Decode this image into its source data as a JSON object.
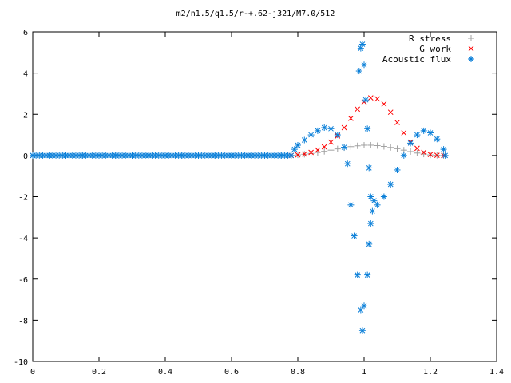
{
  "chart_data": {
    "type": "scatter",
    "title": "m2/n1.5/q1.5/r-+.62-j321/M7.0/512",
    "xlabel": "",
    "ylabel": "",
    "xlim": [
      0,
      1.4
    ],
    "ylim": [
      -10,
      6
    ],
    "x_ticks": [
      "0",
      "0.2",
      "0.4",
      "0.6",
      "0.8",
      "1",
      "1.2",
      "1.4"
    ],
    "y_ticks": [
      "-10",
      "-8",
      "-6",
      "-4",
      "-2",
      "0",
      "2",
      "4",
      "6"
    ],
    "grid": false,
    "legend_position": "top-right",
    "series": [
      {
        "name": "R stress",
        "marker": "plus",
        "color": "#a0a0a0",
        "points": [
          [
            0.78,
            0.0
          ],
          [
            0.8,
            0.03
          ],
          [
            0.82,
            0.06
          ],
          [
            0.84,
            0.1
          ],
          [
            0.86,
            0.15
          ],
          [
            0.88,
            0.2
          ],
          [
            0.9,
            0.26
          ],
          [
            0.92,
            0.32
          ],
          [
            0.94,
            0.38
          ],
          [
            0.96,
            0.43
          ],
          [
            0.98,
            0.47
          ],
          [
            1.0,
            0.5
          ],
          [
            1.02,
            0.5
          ],
          [
            1.04,
            0.48
          ],
          [
            1.06,
            0.44
          ],
          [
            1.08,
            0.39
          ],
          [
            1.1,
            0.33
          ],
          [
            1.12,
            0.26
          ],
          [
            1.14,
            0.19
          ],
          [
            1.16,
            0.12
          ],
          [
            1.18,
            0.07
          ],
          [
            1.2,
            0.03
          ],
          [
            1.22,
            0.01
          ],
          [
            1.24,
            0.0
          ]
        ]
      },
      {
        "name": "G work",
        "marker": "cross",
        "color": "#ff0000",
        "points": [
          [
            0.78,
            0.0
          ],
          [
            0.8,
            0.03
          ],
          [
            0.82,
            0.07
          ],
          [
            0.84,
            0.15
          ],
          [
            0.86,
            0.26
          ],
          [
            0.88,
            0.42
          ],
          [
            0.9,
            0.65
          ],
          [
            0.92,
            0.95
          ],
          [
            0.94,
            1.35
          ],
          [
            0.96,
            1.8
          ],
          [
            0.98,
            2.25
          ],
          [
            1.0,
            2.6
          ],
          [
            1.02,
            2.8
          ],
          [
            1.04,
            2.75
          ],
          [
            1.06,
            2.5
          ],
          [
            1.08,
            2.1
          ],
          [
            1.1,
            1.6
          ],
          [
            1.12,
            1.1
          ],
          [
            1.14,
            0.65
          ],
          [
            1.16,
            0.35
          ],
          [
            1.18,
            0.15
          ],
          [
            1.2,
            0.05
          ],
          [
            1.22,
            0.01
          ],
          [
            1.24,
            0.0
          ]
        ]
      },
      {
        "name": "Acoustic flux",
        "marker": "star",
        "color": "#0a7fd8",
        "points": [
          [
            0.0,
            0.0
          ],
          [
            0.05,
            0.0
          ],
          [
            0.1,
            0.0
          ],
          [
            0.15,
            0.0
          ],
          [
            0.2,
            0.0
          ],
          [
            0.25,
            0.0
          ],
          [
            0.3,
            0.0
          ],
          [
            0.35,
            0.0
          ],
          [
            0.4,
            0.0
          ],
          [
            0.45,
            0.0
          ],
          [
            0.5,
            0.0
          ],
          [
            0.55,
            0.0
          ],
          [
            0.6,
            0.0
          ],
          [
            0.65,
            0.0
          ],
          [
            0.7,
            0.0
          ],
          [
            0.75,
            0.0
          ],
          [
            0.78,
            0.0
          ],
          [
            0.79,
            0.3
          ],
          [
            0.8,
            0.5
          ],
          [
            0.82,
            0.75
          ],
          [
            0.84,
            1.0
          ],
          [
            0.86,
            1.2
          ],
          [
            0.88,
            1.35
          ],
          [
            0.9,
            1.3
          ],
          [
            0.92,
            1.0
          ],
          [
            0.94,
            0.4
          ],
          [
            0.95,
            -0.4
          ],
          [
            0.96,
            -2.4
          ],
          [
            0.97,
            -3.9
          ],
          [
            0.98,
            -5.8
          ],
          [
            0.99,
            -7.5
          ],
          [
            0.995,
            -8.5
          ],
          [
            1.0,
            -7.3
          ],
          [
            1.01,
            -5.8
          ],
          [
            1.015,
            -4.3
          ],
          [
            1.02,
            -3.3
          ],
          [
            1.025,
            -2.7
          ],
          [
            1.03,
            -2.2
          ],
          [
            1.04,
            -2.4
          ],
          [
            1.06,
            -2.0
          ],
          [
            1.08,
            -1.4
          ],
          [
            1.1,
            -0.7
          ],
          [
            1.12,
            0.0
          ],
          [
            1.14,
            0.6
          ],
          [
            1.16,
            1.0
          ],
          [
            1.18,
            1.2
          ],
          [
            1.2,
            1.1
          ],
          [
            1.22,
            0.8
          ],
          [
            1.24,
            0.3
          ],
          [
            1.245,
            0.0
          ],
          [
            0.985,
            4.1
          ],
          [
            0.99,
            5.2
          ],
          [
            0.995,
            5.4
          ],
          [
            1.0,
            4.4
          ],
          [
            1.005,
            2.7
          ],
          [
            1.01,
            1.3
          ],
          [
            1.015,
            -0.6
          ],
          [
            1.02,
            -2.0
          ]
        ]
      }
    ]
  }
}
